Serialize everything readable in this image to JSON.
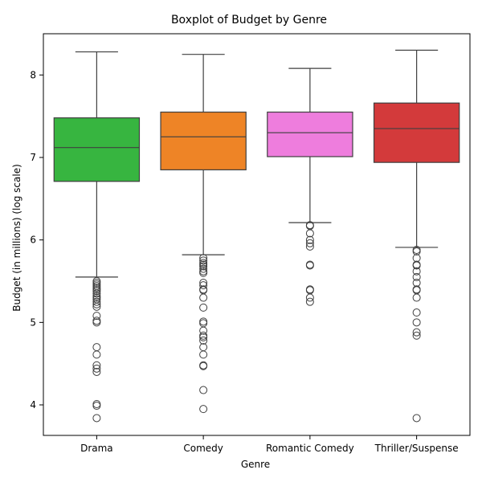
{
  "chart_data": {
    "type": "box",
    "title": "Boxplot of Budget by Genre",
    "xlabel": "Genre",
    "ylabel": "Budget (in millions) (log scale)",
    "ylim": [
      3.63,
      8.5
    ],
    "yticks": [
      4,
      5,
      6,
      7,
      8
    ],
    "grid": false,
    "legend": "none",
    "median_color": "#3f3f3f",
    "categories": [
      "Drama",
      "Comedy",
      "Romantic Comedy",
      "Thriller/Suspense"
    ],
    "series": [
      {
        "category": "Drama",
        "color": "#37b540",
        "whisker_low": 5.55,
        "q1": 6.71,
        "median": 7.12,
        "q3": 7.48,
        "whisker_high": 8.28,
        "outliers": [
          5.5,
          5.48,
          5.46,
          5.44,
          5.42,
          5.4,
          5.38,
          5.35,
          5.32,
          5.3,
          5.28,
          5.25,
          5.22,
          5.19,
          5.08,
          5.02,
          5.0,
          4.7,
          4.61,
          4.48,
          4.44,
          4.4,
          4.01,
          3.99,
          3.84
        ]
      },
      {
        "category": "Comedy",
        "color": "#ee8426",
        "whisker_low": 5.82,
        "q1": 6.85,
        "median": 7.25,
        "q3": 7.55,
        "whisker_high": 8.25,
        "outliers": [
          5.78,
          5.75,
          5.72,
          5.7,
          5.68,
          5.65,
          5.62,
          5.6,
          5.48,
          5.45,
          5.4,
          5.39,
          5.3,
          5.18,
          5.01,
          4.99,
          4.9,
          4.84,
          4.82,
          4.78,
          4.7,
          4.61,
          4.48,
          4.47,
          4.18,
          3.95
        ]
      },
      {
        "category": "Romantic Comedy",
        "color": "#ee7ddd",
        "whisker_low": 6.21,
        "q1": 7.01,
        "median": 7.3,
        "q3": 7.55,
        "whisker_high": 8.08,
        "outliers": [
          6.18,
          6.17,
          6.08,
          6.0,
          5.96,
          5.92,
          5.7,
          5.69,
          5.4,
          5.39,
          5.3,
          5.25
        ]
      },
      {
        "category": "Thriller/Suspense",
        "color": "#d33a3b",
        "whisker_low": 5.91,
        "q1": 6.94,
        "median": 7.35,
        "q3": 7.66,
        "whisker_high": 8.3,
        "outliers": [
          5.88,
          5.86,
          5.78,
          5.7,
          5.69,
          5.62,
          5.55,
          5.48,
          5.4,
          5.39,
          5.3,
          5.12,
          5.0,
          4.88,
          4.84,
          3.84
        ]
      }
    ]
  }
}
